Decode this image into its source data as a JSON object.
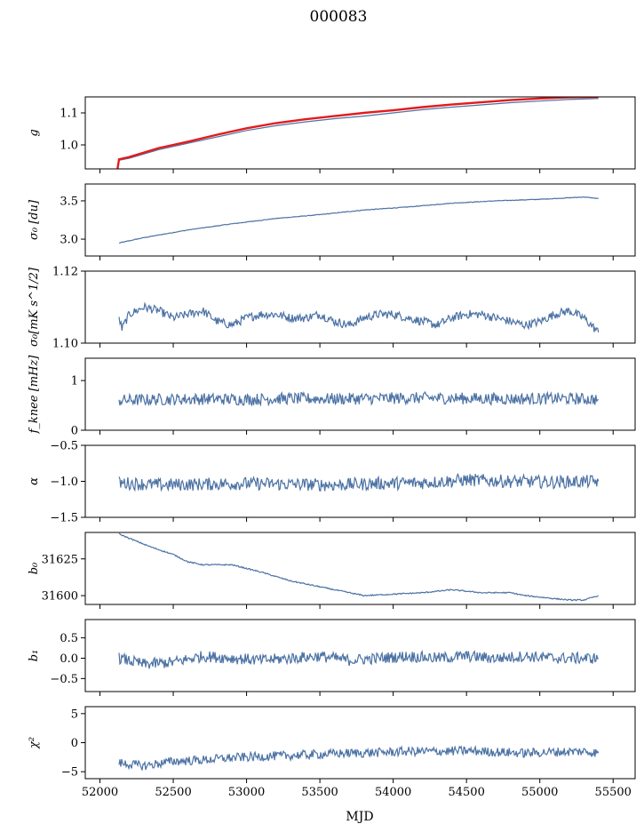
{
  "figure": {
    "title": "000083",
    "xlabel": "MJD"
  },
  "colors": {
    "series": "#4c72a4",
    "overlay": "#e41a1c",
    "axis": "#000000"
  },
  "chart_data": [
    {
      "id": "g",
      "type": "line",
      "ylabel": "g",
      "xlim": [
        51900,
        55650
      ],
      "ylim": [
        0.925,
        1.15
      ],
      "yticks": [
        1.0,
        1.1
      ],
      "ytick_labels": [
        "1.0",
        "1.1"
      ],
      "series": [
        {
          "color": "#4c72a4",
          "x": [
            52130,
            52200,
            52400,
            52600,
            52800,
            53000,
            53200,
            53400,
            53600,
            53800,
            54000,
            54200,
            54400,
            54600,
            54800,
            55000,
            55200,
            55400
          ],
          "y": [
            0.952,
            0.958,
            0.985,
            1.005,
            1.025,
            1.045,
            1.06,
            1.072,
            1.082,
            1.09,
            1.1,
            1.11,
            1.118,
            1.125,
            1.132,
            1.137,
            1.142,
            1.145
          ]
        },
        {
          "color": "#e41a1c",
          "x": [
            52120,
            52130,
            52200,
            52400,
            52600,
            52800,
            53000,
            53200,
            53400,
            53600,
            53800,
            54000,
            54200,
            54400,
            54600,
            54800,
            55000,
            55200,
            55400
          ],
          "y": [
            0.925,
            0.955,
            0.962,
            0.99,
            1.01,
            1.032,
            1.052,
            1.068,
            1.08,
            1.09,
            1.1,
            1.108,
            1.118,
            1.126,
            1.133,
            1.14,
            1.145,
            1.149,
            1.15
          ]
        }
      ]
    },
    {
      "id": "sigma0",
      "type": "line",
      "ylabel": "σ₀ [du]",
      "xlim": [
        51900,
        55650
      ],
      "ylim": [
        2.78,
        3.72
      ],
      "yticks": [
        3.0,
        3.5
      ],
      "ytick_labels": [
        "3.0",
        "3.5"
      ],
      "series": [
        {
          "x": [
            52130,
            52300,
            52600,
            52900,
            53200,
            53500,
            53800,
            54100,
            54400,
            54700,
            55000,
            55200,
            55300,
            55400
          ],
          "y": [
            2.95,
            3.02,
            3.12,
            3.2,
            3.27,
            3.32,
            3.38,
            3.42,
            3.47,
            3.5,
            3.52,
            3.54,
            3.55,
            3.53
          ]
        }
      ]
    },
    {
      "id": "sigma0_temp",
      "type": "line",
      "ylabel": "σ₀[mK s^1/2]",
      "xlim": [
        51900,
        55650
      ],
      "ylim": [
        1.1,
        1.12
      ],
      "yticks": [
        1.1,
        1.12
      ],
      "ytick_labels": [
        "1.10",
        "1.12"
      ],
      "series": [
        {
          "x": [
            52130,
            52150,
            52200,
            52300,
            52400,
            52500,
            52600,
            52700,
            52800,
            52900,
            53000,
            53100,
            53200,
            53300,
            53400,
            53500,
            53600,
            53700,
            53800,
            53900,
            54000,
            54100,
            54200,
            54300,
            54400,
            54500,
            54600,
            54700,
            54800,
            54900,
            55000,
            55100,
            55200,
            55300,
            55400
          ],
          "y": [
            1.107,
            1.104,
            1.108,
            1.11,
            1.109,
            1.107,
            1.108,
            1.109,
            1.106,
            1.105,
            1.107,
            1.108,
            1.108,
            1.107,
            1.107,
            1.108,
            1.106,
            1.105,
            1.107,
            1.108,
            1.108,
            1.107,
            1.106,
            1.105,
            1.107,
            1.108,
            1.108,
            1.107,
            1.106,
            1.105,
            1.106,
            1.108,
            1.109,
            1.107,
            1.103
          ]
        }
      ]
    },
    {
      "id": "fknee",
      "type": "line",
      "ylabel": "f_knee [mHz]",
      "xlim": [
        51900,
        55650
      ],
      "ylim": [
        0,
        1.45
      ],
      "yticks": [
        0,
        1
      ],
      "ytick_labels": [
        "0",
        "1"
      ],
      "series": [
        {
          "x": [
            52130,
            52400,
            52700,
            53000,
            53300,
            53600,
            53900,
            54200,
            54500,
            54800,
            55100,
            55400
          ],
          "y": [
            0.6,
            0.62,
            0.63,
            0.62,
            0.64,
            0.63,
            0.64,
            0.65,
            0.64,
            0.63,
            0.64,
            0.62
          ]
        }
      ]
    },
    {
      "id": "alpha",
      "type": "line",
      "ylabel": "α",
      "xlim": [
        51900,
        55650
      ],
      "ylim": [
        -1.5,
        -0.5
      ],
      "yticks": [
        -1.5,
        -1.0,
        -0.5
      ],
      "ytick_labels": [
        "−1.5",
        "−1.0",
        "−0.5"
      ],
      "series": [
        {
          "x": [
            52130,
            52400,
            52700,
            53000,
            53300,
            53600,
            53900,
            54200,
            54500,
            54800,
            55100,
            55400
          ],
          "y": [
            -1.02,
            -1.05,
            -1.04,
            -1.03,
            -1.04,
            -1.05,
            -1.03,
            -1.02,
            -0.98,
            -1.0,
            -1.01,
            -1.0
          ]
        }
      ]
    },
    {
      "id": "b0",
      "type": "line",
      "ylabel": "b₀",
      "xlim": [
        51900,
        55650
      ],
      "ylim": [
        31594,
        31643
      ],
      "yticks": [
        31600,
        31625
      ],
      "ytick_labels": [
        "31600",
        "31625"
      ],
      "series": [
        {
          "x": [
            52130,
            52200,
            52350,
            52500,
            52600,
            52700,
            52900,
            53100,
            53300,
            53500,
            53700,
            53800,
            54000,
            54200,
            54400,
            54600,
            54800,
            54900,
            55100,
            55200,
            55300,
            55400
          ],
          "y": [
            31642,
            31639,
            31633,
            31628,
            31623,
            31621,
            31621,
            31616,
            31610,
            31606,
            31602,
            31600,
            31601,
            31602,
            31604,
            31602,
            31602,
            31600,
            31598,
            31597,
            31597,
            31600
          ]
        }
      ]
    },
    {
      "id": "b1",
      "type": "line",
      "ylabel": "b₁",
      "xlim": [
        51900,
        55650
      ],
      "ylim": [
        -0.82,
        0.95
      ],
      "yticks": [
        -0.5,
        0.0,
        0.5
      ],
      "ytick_labels": [
        "−0.5",
        "0.0",
        "0.5"
      ],
      "series": [
        {
          "x": [
            52130,
            52300,
            52500,
            52700,
            52900,
            53100,
            53300,
            53500,
            53700,
            53900,
            54100,
            54300,
            54500,
            54700,
            54900,
            55100,
            55300,
            55400
          ],
          "y": [
            0.0,
            -0.15,
            -0.1,
            0.05,
            0.0,
            -0.05,
            0.0,
            0.05,
            -0.05,
            0.0,
            0.05,
            0.0,
            0.05,
            0.0,
            0.05,
            0.0,
            0.0,
            0.0
          ]
        }
      ]
    },
    {
      "id": "chi2",
      "type": "line",
      "ylabel": "χ²",
      "xlim": [
        51900,
        55650
      ],
      "ylim": [
        -6.2,
        6.2
      ],
      "yticks": [
        -5,
        0,
        5
      ],
      "ytick_labels": [
        "−5",
        "0",
        "5"
      ],
      "xticks": [
        52000,
        52500,
        53000,
        53500,
        54000,
        54500,
        55000,
        55500
      ],
      "xtick_labels": [
        "52000",
        "52500",
        "53000",
        "53500",
        "54000",
        "54500",
        "55000",
        "55500"
      ],
      "series": [
        {
          "x": [
            52130,
            52300,
            52500,
            52700,
            52900,
            53100,
            53300,
            53500,
            53700,
            53900,
            54100,
            54300,
            54500,
            54700,
            54900,
            55100,
            55300,
            55400
          ],
          "y": [
            -3.5,
            -4.0,
            -3.2,
            -3.0,
            -2.6,
            -2.4,
            -2.2,
            -2.0,
            -1.8,
            -1.7,
            -1.5,
            -1.5,
            -1.4,
            -1.6,
            -1.8,
            -1.6,
            -1.5,
            -1.8
          ]
        }
      ]
    }
  ]
}
